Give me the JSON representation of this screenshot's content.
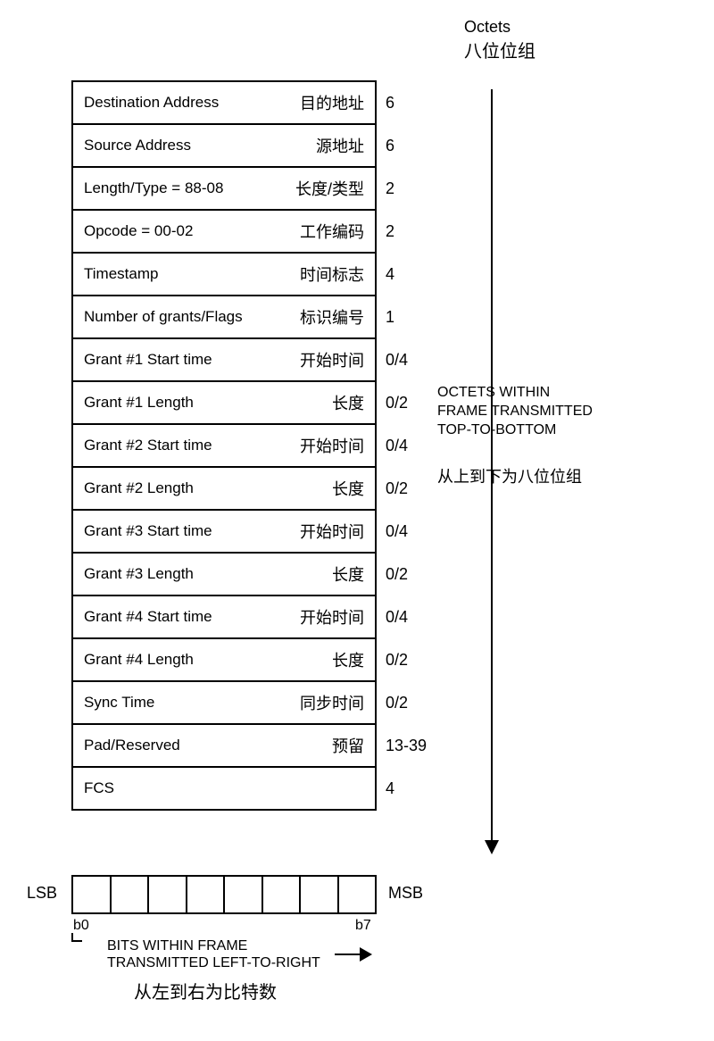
{
  "header": {
    "octets_en": "Octets",
    "octets_cn": "八位位组"
  },
  "rows": [
    {
      "en": "Destination Address",
      "cn": "目的地址",
      "octets": "6"
    },
    {
      "en": "Source Address",
      "cn": "源地址",
      "octets": "6"
    },
    {
      "en": "Length/Type = 88-08",
      "cn": "长度/类型",
      "octets": "2"
    },
    {
      "en": "Opcode = 00-02",
      "cn": "工作编码",
      "octets": "2"
    },
    {
      "en": "Timestamp",
      "cn": "时间标志",
      "octets": "4"
    },
    {
      "en": "Number of grants/Flags",
      "cn": "标识编号",
      "octets": "1"
    },
    {
      "en": "Grant #1 Start time",
      "cn": "开始时间",
      "octets": "0/4"
    },
    {
      "en": "Grant #1 Length",
      "cn": "长度",
      "octets": "0/2"
    },
    {
      "en": "Grant #2 Start time",
      "cn": "开始时间",
      "octets": "0/4"
    },
    {
      "en": "Grant #2 Length",
      "cn": "长度",
      "octets": "0/2"
    },
    {
      "en": "Grant #3 Start time",
      "cn": "开始时间",
      "octets": "0/4"
    },
    {
      "en": "Grant #3 Length",
      "cn": "长度",
      "octets": "0/2"
    },
    {
      "en": "Grant #4 Start time",
      "cn": "开始时间",
      "octets": "0/4"
    },
    {
      "en": "Grant #4 Length",
      "cn": "长度",
      "octets": "0/2"
    },
    {
      "en": "Sync Time",
      "cn": "同步时间",
      "octets": "0/2"
    },
    {
      "en": "Pad/Reserved",
      "cn": "预留",
      "octets": "13-39"
    },
    {
      "en": "FCS",
      "cn": "",
      "octets": "4"
    }
  ],
  "side": {
    "en_line1": "OCTETS WITHIN",
    "en_line2": "FRAME TRANSMITTED",
    "en_line3": "TOP-TO-BOTTOM",
    "cn": "从上到下为八位位组"
  },
  "bits": {
    "lsb": "LSB",
    "msb": "MSB",
    "b0": "b0",
    "b7": "b7",
    "en_line1": "BITS WITHIN FRAME",
    "en_line2": "TRANSMITTED LEFT-TO-RIGHT",
    "cn": "从左到右为比特数"
  },
  "colors": {
    "border": "#000000",
    "background": "#ffffff",
    "text": "#000000"
  },
  "fonts": {
    "base_size": 17,
    "cn_size": 18,
    "label_size": 18
  }
}
